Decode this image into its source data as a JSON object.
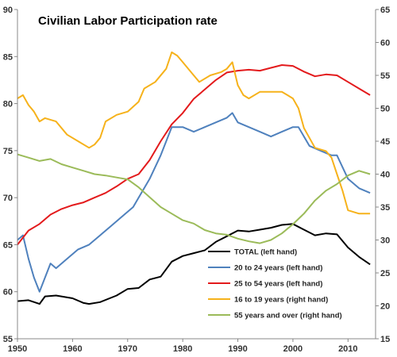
{
  "chart_data": {
    "type": "line",
    "title": "Civilian Labor Participation rate",
    "xlim": [
      1950,
      2015
    ],
    "x_ticks": [
      "1950",
      "1960",
      "1970",
      "1980",
      "1990",
      "2000",
      "2010"
    ],
    "ylim_left": [
      55,
      90
    ],
    "y_ticks_left": [
      "55",
      "60",
      "65",
      "70",
      "75",
      "80",
      "85",
      "90"
    ],
    "ylim_right": [
      15,
      65
    ],
    "y_ticks_right": [
      "15",
      "20",
      "25",
      "30",
      "35",
      "40",
      "45",
      "50",
      "55",
      "60",
      "65"
    ],
    "grid": false,
    "legend_position": "bottom-right",
    "series": [
      {
        "name": "TOTAL (left hand)",
        "axis": "left",
        "color": "#000000",
        "x": [
          1950,
          1952,
          1954,
          1955,
          1957,
          1960,
          1962,
          1963,
          1965,
          1968,
          1970,
          1972,
          1974,
          1976,
          1978,
          1980,
          1982,
          1984,
          1986,
          1988,
          1990,
          1992,
          1994,
          1996,
          1998,
          2000,
          2002,
          2004,
          2006,
          2008,
          2010,
          2012,
          2014
        ],
        "y": [
          59.0,
          59.1,
          58.7,
          59.5,
          59.6,
          59.3,
          58.8,
          58.7,
          58.9,
          59.6,
          60.3,
          60.4,
          61.3,
          61.6,
          63.2,
          63.8,
          64.1,
          64.4,
          65.3,
          65.9,
          66.5,
          66.4,
          66.6,
          66.8,
          67.1,
          67.2,
          66.6,
          66.0,
          66.2,
          66.1,
          64.7,
          63.7,
          62.9
        ]
      },
      {
        "name": "20 to 24 years (left hand)",
        "axis": "left",
        "color": "#4f81bd",
        "x": [
          1950,
          1951,
          1952,
          1953,
          1954,
          1955,
          1956,
          1957,
          1959,
          1961,
          1963,
          1965,
          1967,
          1969,
          1971,
          1972,
          1974,
          1976,
          1978,
          1980,
          1982,
          1984,
          1986,
          1988,
          1989,
          1990,
          1992,
          1994,
          1996,
          1998,
          2000,
          2001,
          2003,
          2005,
          2007,
          2008,
          2010,
          2012,
          2014
        ],
        "y": [
          65.5,
          66.0,
          63.5,
          61.5,
          60.0,
          61.5,
          63.0,
          62.5,
          63.5,
          64.5,
          65.0,
          66.0,
          67.0,
          68.0,
          69.0,
          70.0,
          72.0,
          74.5,
          77.5,
          77.5,
          77.0,
          77.5,
          78.0,
          78.5,
          79.0,
          78.0,
          77.5,
          77.0,
          76.5,
          77.0,
          77.5,
          77.5,
          75.5,
          75.0,
          74.5,
          74.5,
          72.0,
          71.0,
          70.5
        ]
      },
      {
        "name": "25 to 54 years (left hand)",
        "axis": "left",
        "color": "#e31a1c",
        "x": [
          1950,
          1952,
          1954,
          1956,
          1958,
          1960,
          1962,
          1964,
          1966,
          1968,
          1970,
          1972,
          1974,
          1976,
          1978,
          1980,
          1982,
          1984,
          1986,
          1988,
          1990,
          1992,
          1994,
          1996,
          1998,
          2000,
          2002,
          2004,
          2006,
          2008,
          2010,
          2012,
          2014
        ],
        "y": [
          65.0,
          66.5,
          67.2,
          68.2,
          68.8,
          69.2,
          69.5,
          70.0,
          70.5,
          71.2,
          72.0,
          72.5,
          74.0,
          76.0,
          77.8,
          79.0,
          80.5,
          81.5,
          82.5,
          83.3,
          83.5,
          83.6,
          83.5,
          83.8,
          84.1,
          84.0,
          83.4,
          82.9,
          83.1,
          83.0,
          82.3,
          81.6,
          80.9
        ]
      },
      {
        "name": "16 to 19 years (right hand)",
        "axis": "right",
        "color": "#f6b21b",
        "x": [
          1950,
          1951,
          1952,
          1953,
          1954,
          1955,
          1957,
          1959,
          1961,
          1963,
          1964,
          1965,
          1966,
          1968,
          1970,
          1972,
          1973,
          1975,
          1977,
          1978,
          1979,
          1980,
          1982,
          1983,
          1985,
          1987,
          1988,
          1989,
          1990,
          1991,
          1992,
          1994,
          1996,
          1998,
          1999,
          2000,
          2001,
          2002,
          2004,
          2006,
          2007,
          2008,
          2009,
          2010,
          2012,
          2014
        ],
        "y": [
          51.5,
          52.0,
          50.5,
          49.5,
          48.0,
          48.5,
          48.0,
          46.0,
          45.0,
          44.0,
          44.5,
          45.5,
          48.0,
          49.0,
          49.5,
          51.0,
          53.0,
          54.0,
          56.0,
          58.5,
          58.0,
          57.0,
          55.0,
          54.0,
          55.0,
          55.5,
          56.0,
          57.0,
          53.5,
          52.0,
          51.5,
          52.5,
          52.5,
          52.5,
          52.0,
          51.5,
          50.0,
          47.0,
          44.0,
          43.5,
          42.5,
          40.0,
          37.5,
          34.5,
          34.0,
          34.0
        ]
      },
      {
        "name": "55 years and over (right hand)",
        "axis": "right",
        "color": "#9bbb59",
        "x": [
          1950,
          1952,
          1954,
          1956,
          1958,
          1960,
          1962,
          1964,
          1966,
          1968,
          1970,
          1972,
          1974,
          1976,
          1978,
          1980,
          1982,
          1984,
          1986,
          1988,
          1990,
          1992,
          1994,
          1996,
          1998,
          2000,
          2002,
          2004,
          2006,
          2008,
          2010,
          2012,
          2014
        ],
        "y": [
          43.0,
          42.5,
          42.0,
          42.3,
          41.5,
          41.0,
          40.5,
          40.0,
          39.8,
          39.5,
          39.2,
          38.0,
          36.5,
          35.0,
          34.0,
          33.0,
          32.5,
          31.5,
          31.0,
          30.8,
          30.2,
          29.8,
          29.5,
          30.0,
          31.0,
          32.4,
          34.0,
          36.0,
          37.5,
          38.5,
          39.8,
          40.5,
          40.0
        ]
      }
    ]
  }
}
